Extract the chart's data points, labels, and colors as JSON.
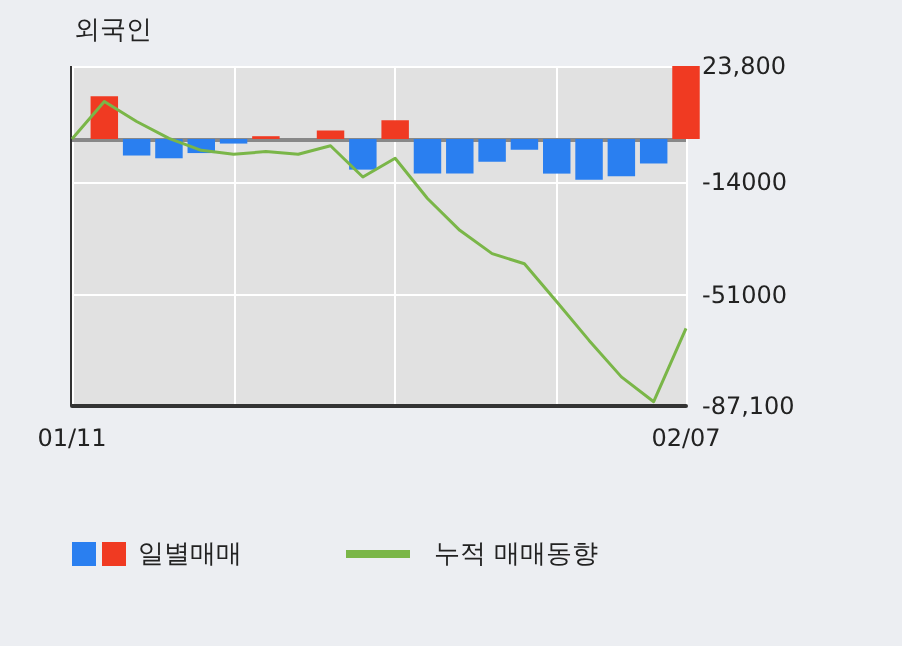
{
  "chart_data": {
    "type": "bar",
    "title": "외국인",
    "categories": [
      "01/11",
      null,
      null,
      null,
      null,
      null,
      null,
      null,
      null,
      null,
      null,
      null,
      null,
      null,
      null,
      null,
      null,
      null,
      null,
      "02/07"
    ],
    "series": [
      {
        "name": "일별매매",
        "colors": [
          null,
          "#f03a22",
          "#2a7ff0",
          "#2a7ff0",
          "#2a7ff0",
          "#2a7ff0",
          "#f03a22",
          null,
          "#f03a22",
          "#2a7ff0",
          "#f03a22",
          "#2a7ff0",
          "#2a7ff0",
          "#2a7ff0",
          "#2a7ff0",
          "#2a7ff0",
          "#2a7ff0",
          "#2a7ff0",
          "#2a7ff0",
          "#f03a22"
        ],
        "values": [
          null,
          13900,
          -5400,
          -6300,
          -4600,
          -1500,
          900,
          0,
          2800,
          -10000,
          6100,
          -11300,
          -11300,
          -7400,
          -3500,
          -11300,
          -13300,
          -12200,
          -8000,
          23800
        ]
      },
      {
        "name": "누적 매매동향",
        "type": "line",
        "color": "#7ab648",
        "values": [
          0,
          12200,
          5700,
          200,
          -3700,
          -5000,
          -4100,
          -5000,
          -2200,
          -12400,
          -6300,
          -19400,
          -29800,
          -37400,
          -40700,
          -53100,
          -65700,
          -77600,
          -85700,
          -61800
        ]
      }
    ],
    "ylim": [
      -87100,
      23800
    ],
    "yticks": [
      {
        "value": 23800,
        "label": "23,800"
      },
      -14000,
      -51000,
      {
        "value": -87100,
        "label": "-87,100"
      }
    ],
    "ref_lines": [
      {
        "axis": "y",
        "value": 0,
        "color": "#888888"
      }
    ],
    "grid": true,
    "legend": "bottom",
    "marker": "none",
    "line_style": "solid"
  }
}
